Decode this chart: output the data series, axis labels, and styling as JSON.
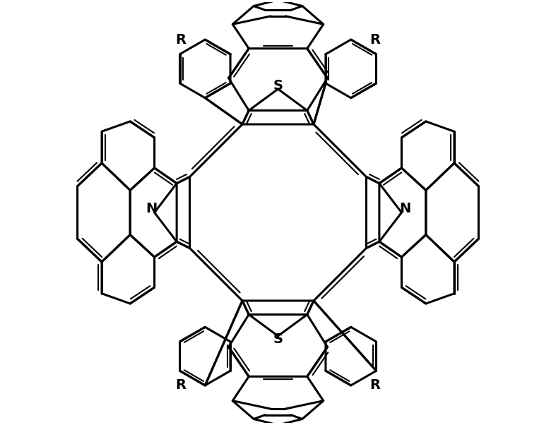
{
  "bg_color": "#ffffff",
  "line_color": "#000000",
  "lw": 2.2,
  "lw2": 1.5,
  "figsize": [
    7.87,
    6.02
  ],
  "dpi": 100,
  "xlim": [
    -5.5,
    5.5
  ],
  "ylim": [
    -5.2,
    5.2
  ]
}
